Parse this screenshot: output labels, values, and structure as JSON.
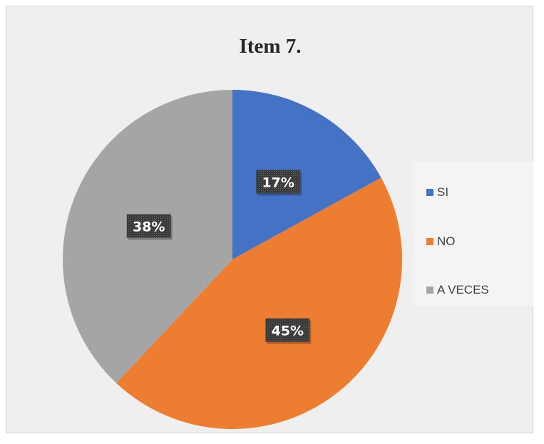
{
  "chart_data": {
    "type": "pie",
    "title": "Item 7.",
    "categories": [
      "SI",
      "NO",
      "A VECES"
    ],
    "values": [
      17,
      45,
      38
    ],
    "data_labels": [
      "17%",
      "45%",
      "38%"
    ],
    "colors": [
      "#4472c4",
      "#ed7d31",
      "#a5a5a5"
    ],
    "legend_position": "right"
  }
}
